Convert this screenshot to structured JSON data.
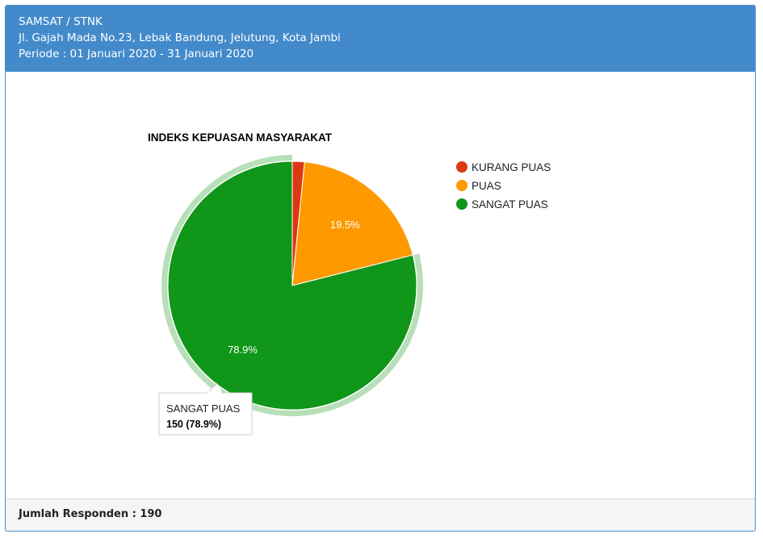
{
  "header": {
    "line1": "SAMSAT / STNK",
    "line2": "Jl. Gajah Mada No.23, Lebak Bandung, Jelutung, Kota Jambi",
    "line3": "Periode : 01 Januari 2020 - 31 Januari 2020"
  },
  "footer": {
    "label": "Jumlah Responden : 190"
  },
  "colors": {
    "header_bg": "#438acb",
    "kurang_puas": "#dc3912",
    "puas": "#ff9900",
    "sangat_puas": "#109618"
  },
  "chart_data": {
    "type": "pie",
    "title": "INDEKS KEPUASAN MASYARAKAT",
    "legend_position": "right",
    "slices": [
      {
        "name": "KURANG PUAS",
        "value": 3,
        "label": "",
        "color": "#dc3912"
      },
      {
        "name": "PUAS",
        "value": 37,
        "label": "19.5%",
        "color": "#ff9900"
      },
      {
        "name": "SANGAT PUAS",
        "value": 150,
        "label": "78.9%",
        "color": "#109618"
      }
    ],
    "tooltip": {
      "title": "SANGAT PUAS",
      "value": "150 (78.9%)"
    }
  }
}
